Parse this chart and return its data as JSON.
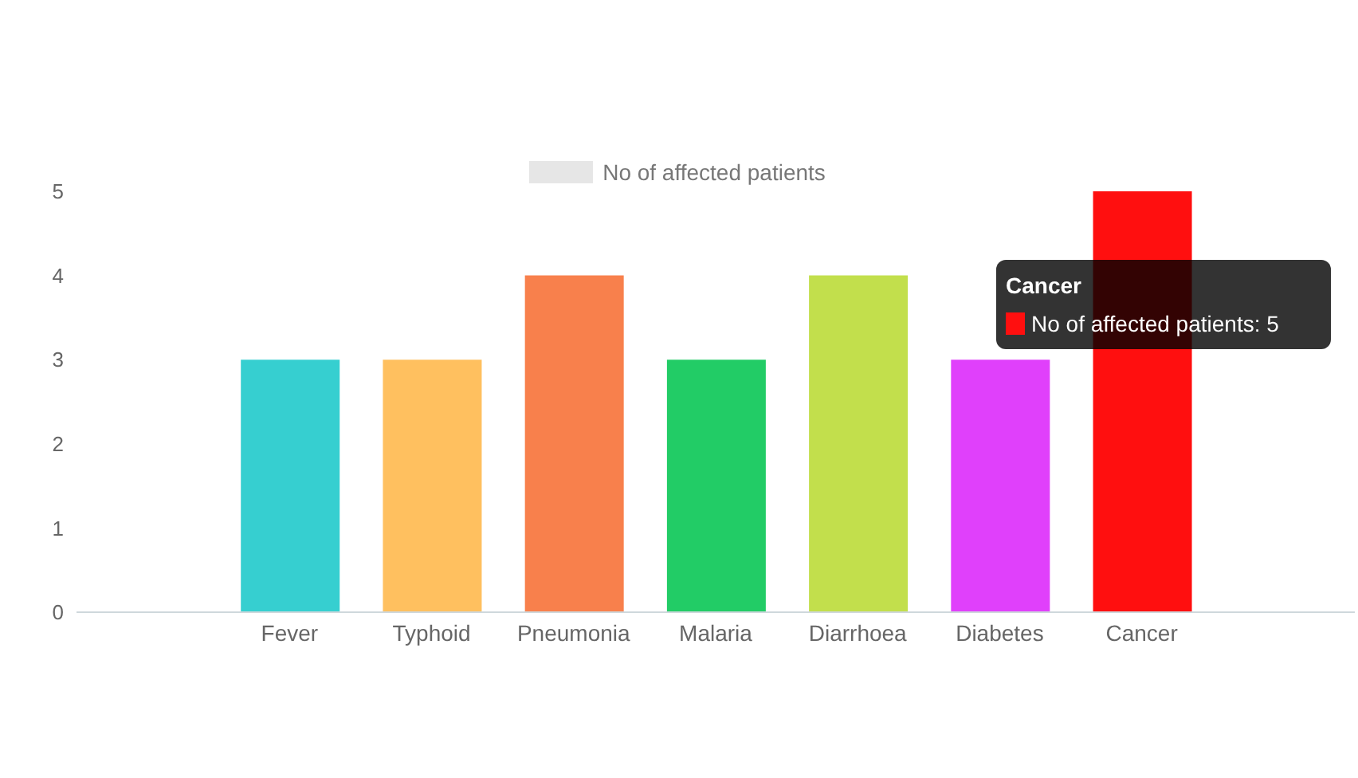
{
  "chart_data": {
    "type": "bar",
    "categories": [
      null,
      "Fever",
      "Typhoid",
      "Pneumonia",
      "Malaria",
      "Diarrhoea",
      "Diabetes",
      "Cancer",
      null
    ],
    "series": [
      {
        "name": "No of affected patients",
        "values": [
          null,
          3,
          3,
          4,
          3,
          4,
          3,
          5,
          null
        ],
        "colors": [
          "#ffffff",
          "#36cfd0",
          "#ffc05f",
          "#f8804c",
          "#22cc66",
          "#c2df4c",
          "#e040fb",
          "#ff0f0f",
          "#ffffff"
        ]
      }
    ],
    "ylim": [
      0,
      5
    ],
    "yticks": [
      0,
      1,
      2,
      3,
      4,
      5
    ],
    "grid": false,
    "legend": "top",
    "annotations": [
      "Cancer",
      "No of affected patients: 5"
    ]
  }
}
